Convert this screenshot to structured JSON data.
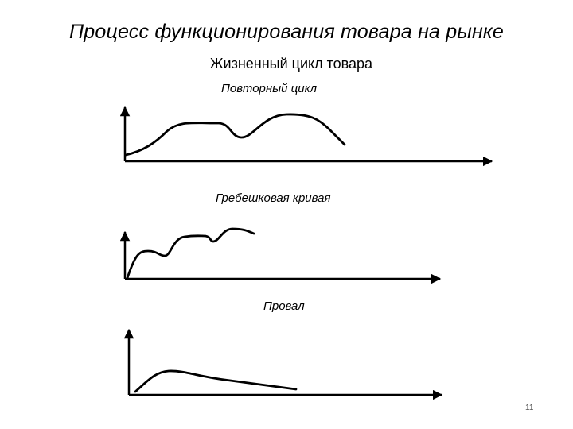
{
  "slide": {
    "title": "Процесс функционирования товара на рынке",
    "subtitle": "Жизненный цикл товара",
    "page_number": "11"
  },
  "diagrams": [
    {
      "label": "Повторный цикл"
    },
    {
      "label": "Гребешковая кривая"
    },
    {
      "label": "Провал"
    }
  ]
}
